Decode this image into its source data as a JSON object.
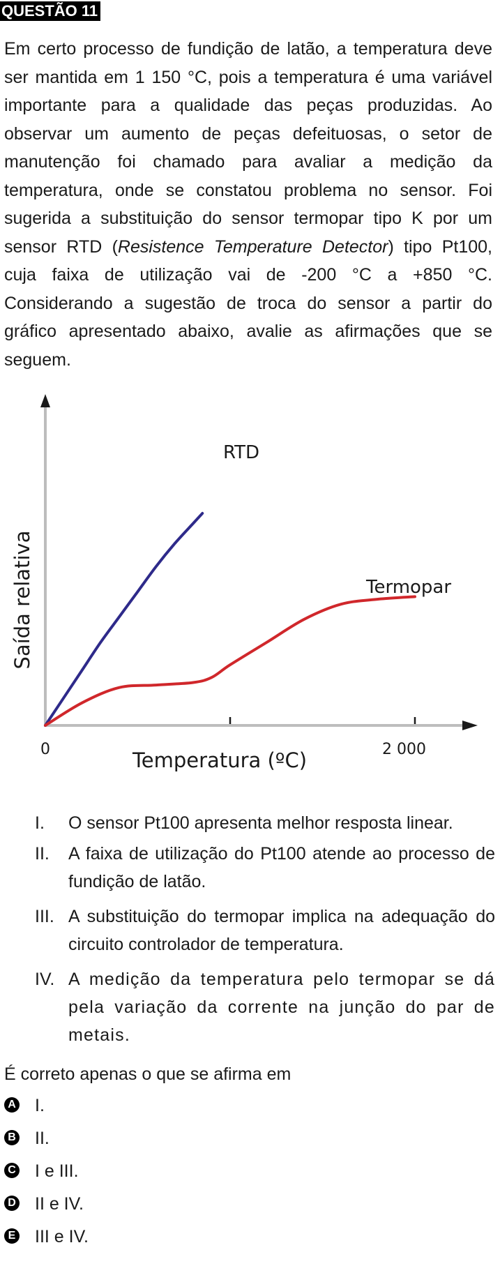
{
  "header": {
    "title": "QUESTÃO 11"
  },
  "statement": {
    "part1": "Em certo processo de fundição de latão, a temperatura deve ser mantida em 1 150 °C, pois a temperatura é uma variável importante para a qualidade das peças produzidas. Ao observar um aumento de peças defeituosas, o setor de manutenção foi chamado para avaliar a medição da temperatura, onde se constatou problema no sensor. Foi sugerida a substituição do sensor termopar tipo K por um sensor RTD (",
    "italic": "Resistence Temperature Detector",
    "part2": ") tipo Pt100, cuja faixa de utilização vai de -200 °C a +850 °C. Considerando a sugestão de troca do sensor a partir do gráfico apresentado abaixo, avalie as afirmações que se seguem."
  },
  "chart_data": {
    "type": "line",
    "xlabel": "Temperatura (ºC)",
    "ylabel": "Saída relativa",
    "x_tick_labels": [
      "0",
      "2 000"
    ],
    "xlim": [
      0,
      2000
    ],
    "series": [
      {
        "name": "RTD",
        "color": "#2e2a8a",
        "x": [
          0,
          100,
          200,
          300,
          400,
          500,
          600,
          700,
          800,
          850
        ],
        "y": [
          0,
          0.11,
          0.22,
          0.33,
          0.43,
          0.53,
          0.63,
          0.72,
          0.8,
          0.84
        ]
      },
      {
        "name": "Termopar",
        "color": "#d0272b",
        "x": [
          0,
          200,
          400,
          600,
          800,
          900,
          1000,
          1200,
          1400,
          1600,
          1800,
          2000
        ],
        "y": [
          0,
          0.09,
          0.15,
          0.16,
          0.17,
          0.19,
          0.24,
          0.33,
          0.42,
          0.48,
          0.5,
          0.51
        ]
      }
    ]
  },
  "items": [
    {
      "num": "I.",
      "text": "O sensor Pt100 apresenta melhor resposta linear."
    },
    {
      "num": "II.",
      "text": "A faixa de utilização do Pt100 atende ao processo de fundição de latão."
    },
    {
      "num": "III.",
      "text": "A substituição do termopar implica na adequação do circuito controlador de temperatura."
    },
    {
      "num": "IV.",
      "text": "A medição da temperatura pelo termopar se dá pela variação da corrente na junção do par de metais."
    }
  ],
  "question": "É correto apenas o que se afirma em",
  "alternatives": [
    {
      "letter": "A",
      "text": "I."
    },
    {
      "letter": "B",
      "text": "II."
    },
    {
      "letter": "C",
      "text": "I e III."
    },
    {
      "letter": "D",
      "text": "II e IV."
    },
    {
      "letter": "E",
      "text": "III e IV."
    }
  ]
}
